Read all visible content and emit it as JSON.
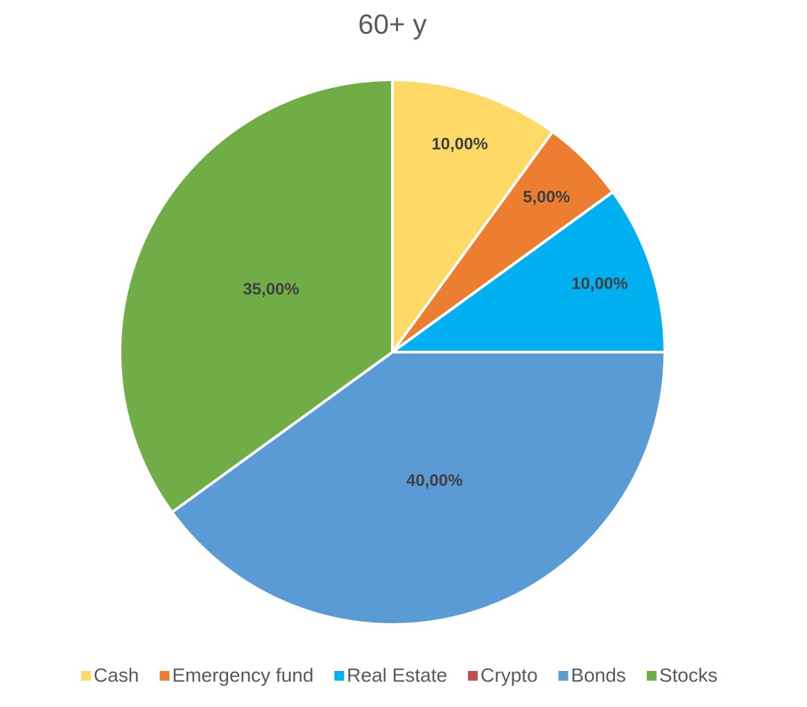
{
  "chart_data": {
    "type": "pie",
    "title": "60+ y",
    "categories": [
      "Cash",
      "Emergency fund",
      "Real Estate",
      "Crypto",
      "Bonds",
      "Stocks"
    ],
    "values": [
      10,
      5,
      10,
      0,
      40,
      35
    ],
    "value_labels": [
      "10,00%",
      "5,00%",
      "10,00%",
      null,
      "40,00%",
      "35,00%"
    ],
    "colors": [
      "#FFD966",
      "#ED7D31",
      "#00B0F0",
      "#C0504D",
      "#5B9BD5",
      "#70AD47"
    ],
    "legend": "bottom"
  }
}
